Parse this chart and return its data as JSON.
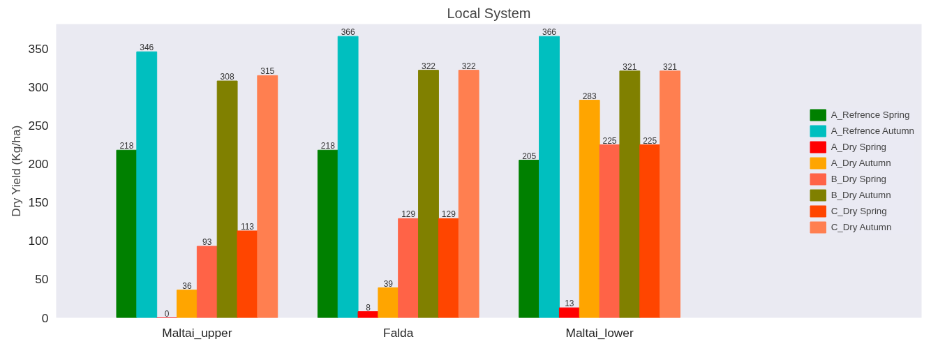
{
  "chart_data": {
    "type": "bar",
    "title": "Local System",
    "ylabel": "Dry Yield (Kg/ha)",
    "categories": [
      "Maltai_upper",
      "Falda",
      "Maltai_lower"
    ],
    "series": [
      {
        "name": "A_Refrence Spring",
        "color": "#008000",
        "values": [
          218,
          218,
          205
        ]
      },
      {
        "name": "A_Refrence Autumn",
        "color": "#00bfbf",
        "values": [
          346,
          366,
          366
        ]
      },
      {
        "name": "A_Dry Spring",
        "color": "#ff0000",
        "values": [
          0,
          8,
          13
        ]
      },
      {
        "name": "A_Dry Autumn",
        "color": "#ffa500",
        "values": [
          36,
          39,
          283
        ]
      },
      {
        "name": "B_Dry Spring",
        "color": "#ff6347",
        "values": [
          93,
          129,
          225
        ]
      },
      {
        "name": "B_Dry Autumn",
        "color": "#808000",
        "values": [
          308,
          322,
          321
        ]
      },
      {
        "name": "C_Dry Spring",
        "color": "#ff4500",
        "values": [
          113,
          129,
          225
        ]
      },
      {
        "name": "C_Dry Autumn",
        "color": "#ff7f50",
        "values": [
          315,
          322,
          321
        ]
      }
    ],
    "ylim": [
      0,
      382
    ],
    "yticks": [
      0,
      50,
      100,
      150,
      200,
      250,
      300,
      350
    ],
    "data_labels": true,
    "grid": false,
    "legend": "right"
  }
}
